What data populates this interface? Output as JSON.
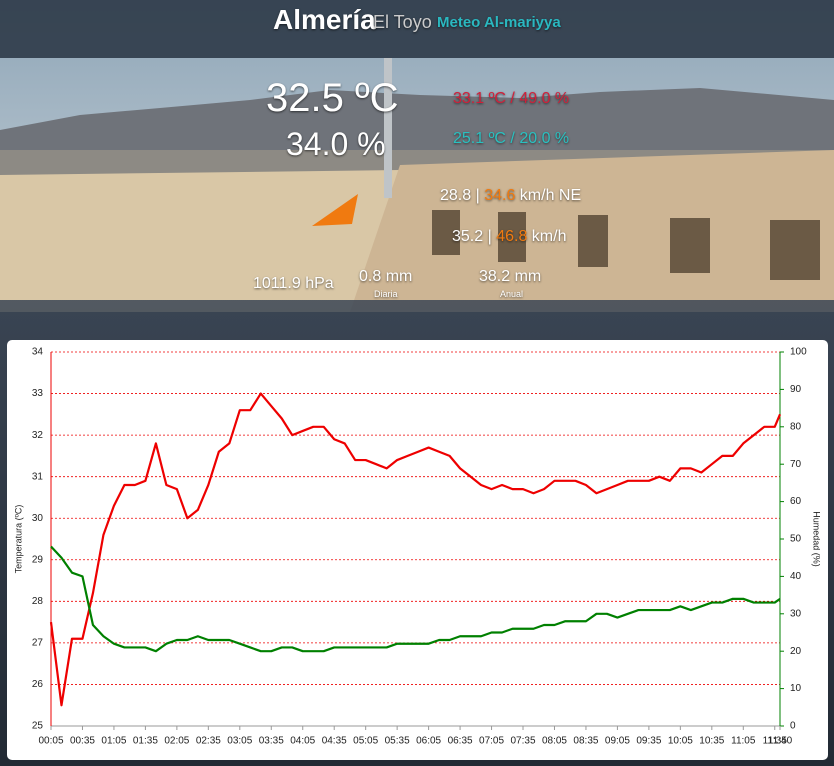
{
  "header": {
    "city": "Almería",
    "place": "El Toyo",
    "site": "Meteo Al-mariyya"
  },
  "readings": {
    "temperature": "32.5 ºC",
    "humidity": "34.0 %",
    "max": "33.1 ºC / 49.0 %",
    "min": "25.1 ºC / 20.0 %",
    "wind": "28.8 |",
    "wind_gust": "34.6",
    "wind_unit": "km/h NE",
    "wind_max": "35.2 |",
    "wind_max_gust": "46.8",
    "wind_max_unit": "km/h",
    "pressure": "1011.9 hPa",
    "rain_day": "0.8 mm",
    "rain_day_label": "Diaria",
    "rain_year": "38.2 mm",
    "rain_year_label": "Anual"
  },
  "chart_data": {
    "type": "line",
    "y_label": "Temperatura (ºC)",
    "y2_label": "Humedad (%)",
    "x": [
      "00:05",
      "00:15",
      "00:25",
      "00:35",
      "00:45",
      "00:55",
      "01:05",
      "01:15",
      "01:25",
      "01:35",
      "01:45",
      "01:55",
      "02:05",
      "02:15",
      "02:25",
      "02:35",
      "02:45",
      "02:55",
      "03:05",
      "03:15",
      "03:25",
      "03:35",
      "03:45",
      "03:55",
      "04:05",
      "04:15",
      "04:25",
      "04:35",
      "04:45",
      "04:55",
      "05:05",
      "05:15",
      "05:25",
      "05:35",
      "05:45",
      "05:55",
      "06:05",
      "06:15",
      "06:25",
      "06:35",
      "06:45",
      "06:55",
      "07:05",
      "07:15",
      "07:25",
      "07:35",
      "07:45",
      "07:55",
      "08:05",
      "08:15",
      "08:25",
      "08:35",
      "08:45",
      "08:55",
      "09:05",
      "09:15",
      "09:25",
      "09:35",
      "09:45",
      "09:55",
      "10:05",
      "10:15",
      "10:25",
      "10:35",
      "10:45",
      "10:55",
      "11:05",
      "11:15",
      "11:25",
      "11:35",
      "11:40"
    ],
    "series": [
      {
        "name": "Temperatura",
        "color": "#ee0000",
        "values": [
          27.5,
          25.5,
          27.1,
          27.1,
          28.2,
          29.6,
          30.3,
          30.8,
          30.8,
          30.9,
          31.8,
          30.8,
          30.7,
          30.0,
          30.2,
          30.8,
          31.6,
          31.8,
          32.6,
          32.6,
          33.0,
          32.7,
          32.4,
          32.0,
          32.1,
          32.2,
          32.2,
          31.9,
          31.8,
          31.4,
          31.4,
          31.3,
          31.2,
          31.4,
          31.5,
          31.6,
          31.7,
          31.6,
          31.5,
          31.2,
          31.0,
          30.8,
          30.7,
          30.8,
          30.7,
          30.7,
          30.6,
          30.7,
          30.9,
          30.9,
          30.9,
          30.8,
          30.6,
          30.7,
          30.8,
          30.9,
          30.9,
          30.9,
          31.0,
          30.9,
          31.2,
          31.2,
          31.1,
          31.3,
          31.5,
          31.5,
          31.8,
          32.0,
          32.2,
          32.2,
          32.5
        ]
      },
      {
        "name": "Humedad",
        "color": "#008000",
        "axis": "y2",
        "values": [
          48,
          45,
          41,
          40,
          27,
          24,
          22,
          21,
          21,
          21,
          20,
          22,
          23,
          23,
          24,
          23,
          23,
          23,
          22,
          21,
          20,
          20,
          21,
          21,
          20,
          20,
          20,
          21,
          21,
          21,
          21,
          21,
          21,
          22,
          22,
          22,
          22,
          23,
          23,
          24,
          24,
          24,
          25,
          25,
          26,
          26,
          26,
          27,
          27,
          28,
          28,
          28,
          30,
          30,
          29,
          30,
          31,
          31,
          31,
          31,
          32,
          31,
          32,
          33,
          33,
          34,
          34,
          33,
          33,
          33,
          34
        ]
      }
    ],
    "xticks": [
      "00:05",
      "00:35",
      "01:05",
      "01:35",
      "02:05",
      "02:35",
      "03:05",
      "03:35",
      "04:05",
      "04:35",
      "05:05",
      "05:35",
      "06:05",
      "06:35",
      "07:05",
      "07:35",
      "08:05",
      "08:35",
      "09:05",
      "09:35",
      "10:05",
      "10:35",
      "11:05",
      "11:35",
      "11:40"
    ],
    "ylim": [
      25,
      34
    ],
    "yticks": [
      25,
      26,
      27,
      28,
      29,
      30,
      31,
      32,
      33,
      34
    ],
    "y2lim": [
      0,
      100
    ],
    "y2ticks": [
      0,
      10,
      20,
      30,
      40,
      50,
      60,
      70,
      80,
      90,
      100
    ],
    "grid": true,
    "grid_color": "#ee0000",
    "axis_color": "#ee0000",
    "axis2_color": "#008000"
  }
}
